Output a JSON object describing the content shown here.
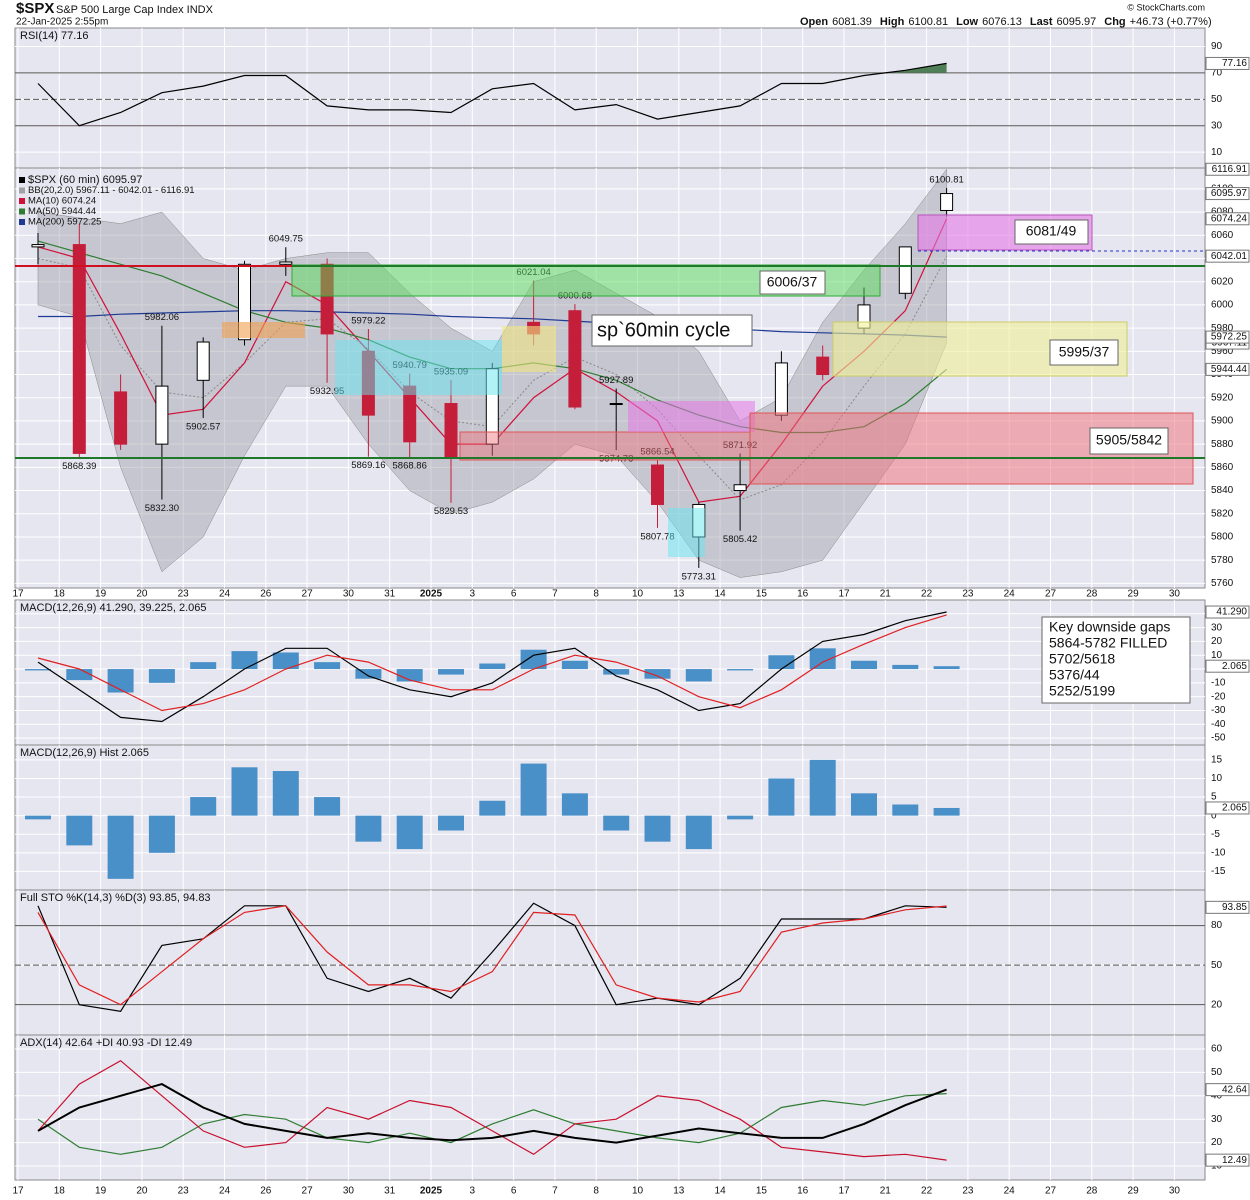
{
  "header": {
    "symbol": "$SPX",
    "name": "S&P 500 Large Cap Index INDX",
    "date": "22-Jan-2025 2:55pm",
    "credit": "© StockCharts.com",
    "quote": [
      {
        "label": "Open",
        "value": "6081.39"
      },
      {
        "label": "High",
        "value": "6100.81"
      },
      {
        "label": "Low",
        "value": "6076.13"
      },
      {
        "label": "Last",
        "value": "6095.97"
      },
      {
        "label": "Chg",
        "value": "+46.73 (+0.77%)"
      }
    ]
  },
  "chart_data": [
    {
      "type": "line",
      "title": "RSI(14) 77.16",
      "ylim": [
        -2,
        104
      ],
      "yticks": [
        90,
        70,
        50,
        30,
        10
      ],
      "levels": [
        70,
        30
      ],
      "midline": 50,
      "fills": [
        {
          "above": 70,
          "color": "#4f7f57"
        },
        {
          "below": 30,
          "color": "#a83252"
        }
      ],
      "series": [
        {
          "color": "#000000",
          "flag": true,
          "values": [
            62,
            30,
            40,
            55,
            60,
            68,
            68,
            45,
            42,
            42,
            40,
            58,
            62,
            42,
            46,
            35,
            40,
            45,
            62,
            62,
            68,
            72,
            77.16,
            null,
            null,
            null,
            null,
            null,
            null
          ]
        }
      ]
    },
    {
      "type": "candlestick",
      "name": "$SPX (60 min) 6095.97",
      "flag": true,
      "categories": [
        "17",
        "18",
        "19",
        "20",
        "23",
        "24",
        "26",
        "27",
        "30",
        "31",
        "2025",
        "3",
        "6",
        "7",
        "8",
        "10",
        "13",
        "14",
        "15",
        "16",
        "17",
        "21",
        "22",
        "23",
        "24",
        "27",
        "28",
        "29",
        "30"
      ],
      "ylim": [
        5756,
        6118
      ],
      "yticks": [
        6100,
        6080,
        6060,
        6040,
        6020,
        6000,
        5980,
        5960,
        5940,
        5920,
        5900,
        5880,
        5860,
        5840,
        5820,
        5800,
        5780,
        5760
      ],
      "up_color": "#000000",
      "down_color": "#c41e3a",
      "open": [
        6050,
        6052,
        5925,
        5880,
        5935,
        5970,
        6035,
        6035,
        5960,
        5930,
        5915,
        5880,
        5985,
        5995,
        5915,
        5862,
        5800,
        5840,
        5905,
        5955,
        5980,
        6010,
        6081.39,
        null,
        null,
        null,
        null,
        null,
        null
      ],
      "high": [
        6062,
        6070,
        5940,
        5982.06,
        5972,
        6038,
        6049.75,
        6040,
        5979.22,
        5940.79,
        5935.09,
        5950,
        6021.04,
        6000.68,
        5927.89,
        5866.54,
        5830,
        5871.92,
        5960,
        5965,
        6015,
        6050,
        6100.81,
        null,
        null,
        null,
        null,
        null,
        null
      ],
      "low": [
        6035,
        5868.39,
        5875,
        5832.3,
        5902.57,
        5965,
        6025,
        5932.95,
        5869.16,
        5868.86,
        5829.53,
        5870,
        5965,
        5910,
        5874.78,
        5807.78,
        5773.31,
        5805.42,
        5900,
        5935,
        5975,
        6005,
        6076.13,
        null,
        null,
        null,
        null,
        null,
        null
      ],
      "close": [
        6052,
        5872,
        5880,
        5930,
        5968,
        6035,
        6037,
        5975,
        5905,
        5882,
        5868,
        5945,
        5975,
        5912,
        5915,
        5828,
        5828,
        5845,
        5950,
        5940,
        6000,
        6050,
        6095.97,
        null,
        null,
        null,
        null,
        null,
        null
      ],
      "high_labels": [
        null,
        null,
        null,
        "5982.06",
        null,
        null,
        "6049.75",
        null,
        "5979.22",
        "5940.79",
        "5935.09",
        null,
        "6021.04",
        "6000.68",
        "5927.89",
        "5866.54",
        null,
        "5871.92",
        null,
        null,
        null,
        null,
        "6100.81",
        null,
        null,
        null,
        null,
        null,
        null
      ],
      "low_labels": [
        null,
        "5868.39",
        null,
        "5832.30",
        "5902.57",
        null,
        null,
        "5932.95",
        "5869.16",
        "5868.86",
        "5829.53",
        null,
        null,
        null,
        "5874.78",
        "5807.78",
        "5773.31",
        "5805.42",
        null,
        null,
        null,
        null,
        null,
        null,
        null,
        null,
        null,
        null,
        null
      ],
      "bb": {
        "name": "BB(20,2.0) 5967.11 - 6042.01 - 6116.91",
        "color": "#a0a0a8",
        "flag": true,
        "upper": [
          6080,
          6075,
          6070,
          6080,
          6040,
          6030,
          6040,
          6045,
          6045,
          6010,
          5980,
          5960,
          6020,
          6030,
          6010,
          5990,
          5960,
          5900,
          5920,
          5985,
          6030,
          6070,
          6116.91,
          null,
          null,
          null,
          null,
          null,
          null
        ],
        "middle": [
          6040,
          6032,
          5965,
          5925,
          5920,
          5950,
          5985,
          5988,
          5962,
          5925,
          5900,
          5895,
          5935,
          5955,
          5940,
          5910,
          5870,
          5832,
          5845,
          5882,
          5930,
          5975,
          6042.01,
          null,
          null,
          null,
          null,
          null,
          null
        ],
        "lower": [
          6000,
          5990,
          5860,
          5770,
          5800,
          5870,
          5930,
          5930,
          5880,
          5840,
          5820,
          5830,
          5850,
          5880,
          5870,
          5830,
          5780,
          5765,
          5770,
          5780,
          5830,
          5880,
          5967.11,
          null,
          null,
          null,
          null,
          null,
          null
        ]
      },
      "series": [
        {
          "name": "MA(10) 6074.24",
          "color": "#d0103a",
          "flag": true,
          "values": [
            6050,
            6040,
            5975,
            5905,
            5910,
            5950,
            6020,
            6000,
            5960,
            5920,
            5880,
            5880,
            5920,
            5945,
            5925,
            5900,
            5830,
            5835,
            5880,
            5930,
            5960,
            5995,
            6074.24,
            null,
            null,
            null,
            null,
            null,
            null
          ]
        },
        {
          "name": "MA(50) 5944.44",
          "color": "#2e7d32",
          "flag": true,
          "values": [
            6055,
            6045,
            6035,
            6025,
            6010,
            5995,
            5985,
            5980,
            5970,
            5955,
            5945,
            5945,
            5950,
            5945,
            5935,
            5918,
            5905,
            5895,
            5890,
            5890,
            5895,
            5915,
            5944.44,
            null,
            null,
            null,
            null,
            null,
            null
          ]
        },
        {
          "name": "MA(200) 5972.25",
          "color": "#1f3a93",
          "flag": true,
          "values": [
            5990,
            5990,
            5992,
            5993,
            5994,
            5995,
            5995,
            5994,
            5993,
            5992,
            5990,
            5989,
            5988,
            5986,
            5984,
            5982,
            5980,
            5979,
            5977,
            5976,
            5975,
            5974,
            5972.25,
            null,
            null,
            null,
            null,
            null,
            null
          ]
        }
      ],
      "zones": [
        "6006/37",
        "6081/49",
        "5995/37",
        "5905/5842"
      ],
      "note": "sp`60min cycle"
    },
    {
      "type": "line",
      "title": "MACD(12,26,9) 41.290, 39.225, 2.065",
      "ylim": [
        -55,
        50
      ],
      "yticks": [
        40,
        30,
        20,
        10,
        0,
        -10,
        -20,
        -30,
        -40,
        -50
      ],
      "series": [
        {
          "kind": "bar",
          "color": "#4a90c8",
          "flag": true,
          "values": [
            -1,
            -8,
            -17,
            -10,
            5,
            13,
            12,
            5,
            -7,
            -9,
            -4,
            4,
            14,
            6,
            -4,
            -7,
            -9,
            -1,
            10,
            15,
            6,
            3,
            2.065,
            null,
            null,
            null,
            null,
            null,
            null
          ]
        },
        {
          "color": "#000000",
          "flag": "41.290",
          "values": [
            5,
            -15,
            -35,
            -38,
            -20,
            0,
            15,
            15,
            -5,
            -15,
            -20,
            -10,
            10,
            15,
            -5,
            -15,
            -30,
            -25,
            0,
            20,
            25,
            35,
            41.29,
            null,
            null,
            null,
            null,
            null,
            null
          ]
        },
        {
          "color": "#e02020",
          "values": [
            8,
            0,
            -15,
            -30,
            -25,
            -15,
            0,
            10,
            5,
            -8,
            -15,
            -15,
            0,
            10,
            5,
            -5,
            -20,
            -28,
            -15,
            5,
            18,
            30,
            39.225,
            null,
            null,
            null,
            null,
            null,
            null
          ]
        }
      ],
      "note_lines": [
        "Key downside gaps",
        "5864-5782 FILLED",
        "5702/5618",
        "5376/44",
        "5252/5199"
      ]
    },
    {
      "type": "bar",
      "title": "MACD(12,26,9) Hist 2.065",
      "ylim": [
        -20,
        19
      ],
      "yticks": [
        15,
        10,
        5,
        0,
        -5,
        -10,
        -15
      ],
      "series": [
        {
          "kind": "bar",
          "color": "#4a90c8",
          "flag": true,
          "values": [
            -1,
            -8,
            -17,
            -10,
            5,
            13,
            12,
            5,
            -7,
            -9,
            -4,
            4,
            14,
            6,
            -4,
            -7,
            -9,
            -1,
            10,
            15,
            6,
            3,
            2.065,
            null,
            null,
            null,
            null,
            null,
            null
          ]
        }
      ]
    },
    {
      "type": "line",
      "title": "Full STO %K(14,3) %D(3) 93.85, 94.83",
      "ylim": [
        -3,
        107
      ],
      "yticks": [
        80,
        50,
        20
      ],
      "levels": [
        80,
        20
      ],
      "midline": 50,
      "series": [
        {
          "color": "#000000",
          "flag": true,
          "values": [
            95,
            20,
            15,
            65,
            70,
            95,
            95,
            40,
            30,
            40,
            25,
            60,
            97,
            80,
            20,
            25,
            20,
            40,
            85,
            85,
            85,
            95,
            93.85,
            null,
            null,
            null,
            null,
            null,
            null
          ]
        },
        {
          "color": "#e02020",
          "values": [
            90,
            35,
            20,
            45,
            70,
            90,
            95,
            60,
            35,
            35,
            30,
            45,
            90,
            88,
            35,
            25,
            22,
            30,
            75,
            82,
            85,
            92,
            94.83,
            null,
            null,
            null,
            null,
            null,
            null
          ]
        }
      ]
    },
    {
      "type": "line",
      "title": "ADX(14) 42.64 +DI 40.93 -DI 12.49",
      "ylim": [
        4,
        66
      ],
      "yticks": [
        60,
        50,
        40,
        30,
        20,
        10
      ],
      "series": [
        {
          "color": "#2e7d32",
          "values": [
            30,
            18,
            15,
            18,
            28,
            32,
            30,
            22,
            20,
            24,
            20,
            28,
            34,
            28,
            25,
            22,
            20,
            24,
            35,
            38,
            36,
            40,
            40.93,
            null,
            null,
            null,
            null,
            null,
            null
          ]
        },
        {
          "color": "#c8102e",
          "flag": true,
          "values": [
            25,
            45,
            55,
            40,
            25,
            18,
            20,
            35,
            30,
            38,
            35,
            25,
            15,
            28,
            30,
            40,
            38,
            30,
            18,
            16,
            14,
            15,
            12.49,
            null,
            null,
            null,
            null,
            null,
            null
          ]
        },
        {
          "color": "#000000",
          "width": 2,
          "flag": true,
          "values": [
            25,
            35,
            40,
            45,
            35,
            28,
            25,
            22,
            24,
            22,
            21,
            22,
            25,
            22,
            20,
            23,
            26,
            24,
            22,
            22,
            28,
            36,
            42.64,
            null,
            null,
            null,
            null,
            null,
            null
          ]
        }
      ]
    }
  ]
}
